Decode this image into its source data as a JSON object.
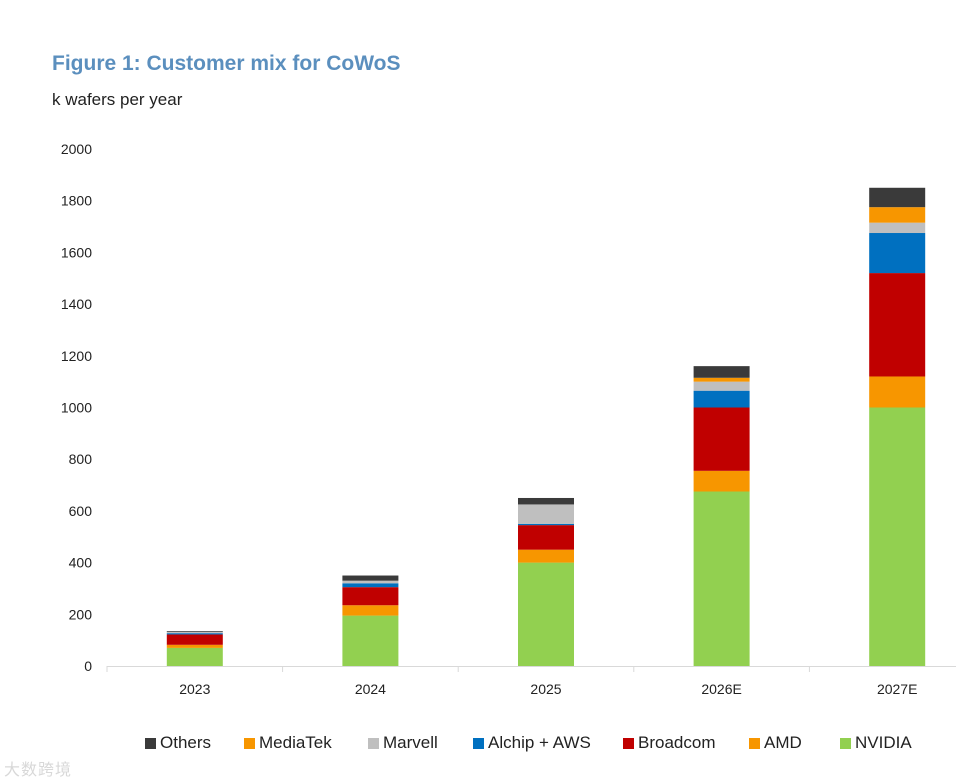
{
  "title": "Figure 1: Customer mix for CoWoS",
  "subtitle": "k wafers per year",
  "watermark": "大数跨境",
  "chart_data": {
    "type": "bar",
    "stacked": true,
    "categories": [
      "2023",
      "2024",
      "2025",
      "2026E",
      "2027E"
    ],
    "ylim": [
      0,
      2000
    ],
    "yticks": [
      0,
      200,
      400,
      600,
      800,
      1000,
      1200,
      1400,
      1600,
      1800,
      2000
    ],
    "series": [
      {
        "name": "NVIDIA",
        "color": "#92d050",
        "values": [
          70,
          195,
          400,
          675,
          1000
        ]
      },
      {
        "name": "AMD",
        "color": "#f79600",
        "values": [
          12,
          40,
          50,
          80,
          120
        ]
      },
      {
        "name": "Broadcom",
        "color": "#c00000",
        "values": [
          40,
          70,
          95,
          245,
          400
        ]
      },
      {
        "name": "Alchip + AWS",
        "color": "#0070c0",
        "values": [
          5,
          15,
          5,
          65,
          155
        ]
      },
      {
        "name": "Marvell",
        "color": "#bfbfbf",
        "values": [
          5,
          10,
          75,
          35,
          40
        ]
      },
      {
        "name": "MediaTek",
        "color": "#f79600",
        "values": [
          0,
          0,
          0,
          15,
          60
        ]
      },
      {
        "name": "Others",
        "color": "#3a3a3a",
        "values": [
          3,
          20,
          25,
          45,
          75
        ]
      }
    ],
    "legend": [
      "Others",
      "MediaTek",
      "Marvell",
      "Alchip + AWS",
      "Broadcom",
      "AMD",
      "NVIDIA"
    ],
    "legend_position": "bottom"
  }
}
